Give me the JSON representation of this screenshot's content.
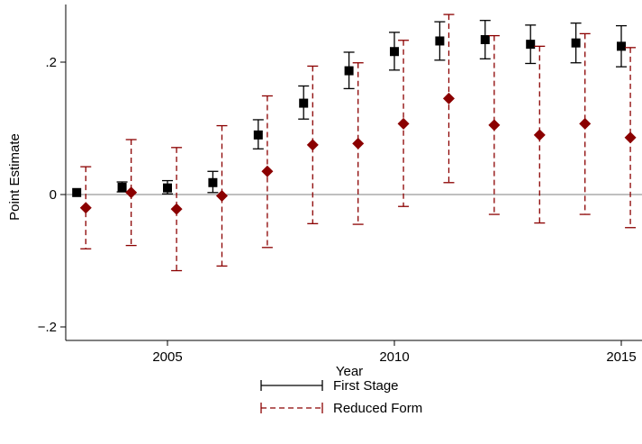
{
  "chart_data": {
    "type": "scatter",
    "xlabel": "Year",
    "ylabel": "Point Estimate",
    "xlim": [
      2003,
      2015.3
    ],
    "ylim": [
      -0.22,
      0.29
    ],
    "x_ticks": [
      2005,
      2010,
      2015
    ],
    "x_tick_labels": [
      "2005",
      "2010",
      "2015"
    ],
    "y_ticks": [
      -0.2,
      0,
      0.2
    ],
    "y_tick_labels": [
      "−.2",
      "0",
      ".2"
    ],
    "grid": false,
    "reference_line_y": 0,
    "legend_position": "bottom",
    "series": [
      {
        "name": "First Stage",
        "color": "#000000",
        "marker": "square",
        "x": [
          2003,
          2004,
          2005,
          2006,
          2007,
          2008,
          2009,
          2010,
          2011,
          2012,
          2013,
          2014,
          2015
        ],
        "estimate": [
          0.003,
          0.011,
          0.01,
          0.018,
          0.09,
          0.138,
          0.187,
          0.216,
          0.232,
          0.234,
          0.227,
          0.229,
          0.224
        ],
        "ci_low": [
          0.003,
          0.004,
          0.001,
          0.003,
          0.069,
          0.114,
          0.16,
          0.188,
          0.203,
          0.205,
          0.198,
          0.199,
          0.193
        ],
        "ci_high": [
          0.003,
          0.019,
          0.021,
          0.035,
          0.113,
          0.164,
          0.215,
          0.245,
          0.261,
          0.263,
          0.256,
          0.259,
          0.255
        ]
      },
      {
        "name": "Reduced Form",
        "color": "#8b0000",
        "marker": "diamond",
        "x": [
          2003.2,
          2004.2,
          2005.2,
          2006.2,
          2007.2,
          2008.2,
          2009.2,
          2010.2,
          2011.2,
          2012.2,
          2013.2,
          2014.2,
          2015.2
        ],
        "estimate": [
          -0.02,
          0.003,
          -0.022,
          -0.002,
          0.035,
          0.075,
          0.077,
          0.107,
          0.145,
          0.105,
          0.09,
          0.107,
          0.086
        ],
        "ci_low": [
          -0.082,
          -0.077,
          -0.115,
          -0.108,
          -0.08,
          -0.044,
          -0.045,
          -0.018,
          0.018,
          -0.03,
          -0.043,
          -0.03,
          -0.05
        ],
        "ci_high": [
          0.042,
          0.083,
          0.071,
          0.104,
          0.149,
          0.194,
          0.199,
          0.233,
          0.272,
          0.24,
          0.224,
          0.243,
          0.222
        ]
      }
    ]
  }
}
